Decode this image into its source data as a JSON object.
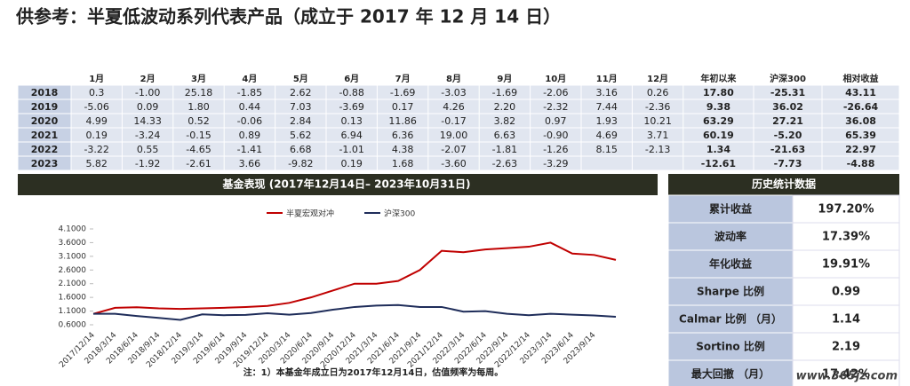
{
  "header": {
    "title": "供参考：半夏低波动系列代表产品（成立于 2017 年 12 月 14 日）"
  },
  "table": {
    "header": [
      null,
      "1月",
      "2月",
      "3月",
      "4月",
      "5月",
      "6月",
      "7月",
      "8月",
      "9月",
      "10月",
      "11月",
      "12月",
      "年初以来",
      "沪深300",
      "相对收益"
    ],
    "rows": [
      [
        "2018",
        "0.3",
        "-1.00",
        "25.18",
        "-1.85",
        "2.62",
        "-0.88",
        "-1.69",
        "-3.03",
        "-1.69",
        "-2.06",
        "3.16",
        "0.26",
        "17.80",
        "-25.31",
        "43.11"
      ],
      [
        "2019",
        "-5.06",
        "0.09",
        "1.80",
        "0.44",
        "7.03",
        "-3.69",
        "0.17",
        "4.26",
        "2.20",
        "-2.32",
        "7.44",
        "-2.36",
        "9.38",
        "36.02",
        "-26.64"
      ],
      [
        "2020",
        "4.99",
        "14.33",
        "0.52",
        "-0.06",
        "2.84",
        "0.13",
        "11.86",
        "-0.17",
        "3.82",
        "0.97",
        "1.93",
        "10.21",
        "63.29",
        "27.21",
        "36.08"
      ],
      [
        "2021",
        "0.19",
        "-3.24",
        "-0.15",
        "0.89",
        "5.62",
        "6.94",
        "6.36",
        "19.00",
        "6.63",
        "-0.90",
        "4.69",
        "3.71",
        "60.19",
        "-5.20",
        "65.39"
      ],
      [
        "2022",
        "-3.22",
        "0.55",
        "-4.65",
        "-1.41",
        "6.68",
        "-1.01",
        "4.38",
        "-2.07",
        "-1.81",
        "-1.26",
        "8.15",
        "-2.13",
        "1.34",
        "-21.63",
        "22.97"
      ],
      [
        "2023",
        "5.82",
        "-1.92",
        "-2.61",
        "3.66",
        "-9.82",
        "0.19",
        "1.68",
        "-3.60",
        "-2.63",
        "-3.29",
        null,
        null,
        "-12.61",
        "-7.73",
        "-4.88"
      ]
    ]
  },
  "chart": {
    "type": "line",
    "title": "基金表现 (2017年12月14日– 2023年10月31日)",
    "categories": [
      "2017/12/14",
      "2018/3/14",
      "2018/6/14",
      "2018/9/14",
      "2018/12/14",
      "2019/3/14",
      "2019/6/14",
      "2019/9/14",
      "2019/12/14",
      "2020/3/14",
      "2020/6/14",
      "2020/9/14",
      "2020/12/14",
      "2021/3/14",
      "2021/6/14",
      "2021/9/14",
      "2021/12/14",
      "2022/3/14",
      "2022/6/14",
      "2022/9/14",
      "2022/12/14",
      "2023/3/14",
      "2023/6/14",
      "2023/9/14",
      null
    ],
    "ylim": [
      0.6,
      4.1
    ],
    "yticks": [
      {
        "value": 0.6,
        "label": "0.6000"
      },
      {
        "value": 1.1,
        "label": "1.1000"
      },
      {
        "value": 1.6,
        "label": "1.6000"
      },
      {
        "value": 2.1,
        "label": "2.1000"
      },
      {
        "value": 2.6,
        "label": "2.6000"
      },
      {
        "value": 3.1,
        "label": "3.1000"
      },
      {
        "value": 3.6,
        "label": "3.6000"
      },
      {
        "value": 4.1,
        "label": "4.1000"
      }
    ],
    "grid": false,
    "series": [
      {
        "name": "半夏宏观对冲",
        "color": "#c00000",
        "values": [
          1.0,
          1.22,
          1.24,
          1.2,
          1.18,
          1.2,
          1.22,
          1.25,
          1.29,
          1.4,
          1.6,
          1.85,
          2.1,
          2.1,
          2.2,
          2.6,
          3.3,
          3.25,
          3.35,
          3.4,
          3.45,
          3.6,
          3.2,
          3.15,
          2.97
        ]
      },
      {
        "name": "沪深300",
        "color": "#1f2d5a",
        "values": [
          1.0,
          1.0,
          0.92,
          0.85,
          0.78,
          0.98,
          0.95,
          0.96,
          1.02,
          0.97,
          1.03,
          1.15,
          1.25,
          1.3,
          1.32,
          1.25,
          1.25,
          1.08,
          1.1,
          1.0,
          0.95,
          1.0,
          0.97,
          0.94,
          0.89
        ]
      }
    ],
    "note": "注：1）本基金年成立日为2017年12月14日，估值频率为每周。"
  },
  "stats": {
    "title": "历史统计数据",
    "rows": [
      [
        "累计收益",
        "197.20%"
      ],
      [
        "波动率",
        "17.39%"
      ],
      [
        "年化收益",
        "19.91%"
      ],
      [
        "Sharpe 比例",
        "0.99"
      ],
      [
        "Calmar 比例 （月）",
        "1.14"
      ],
      [
        "Sortino 比例",
        "2.19"
      ],
      [
        "最大回撤 （月）",
        "17.42%"
      ]
    ]
  },
  "watermark": "www.365jz.com"
}
